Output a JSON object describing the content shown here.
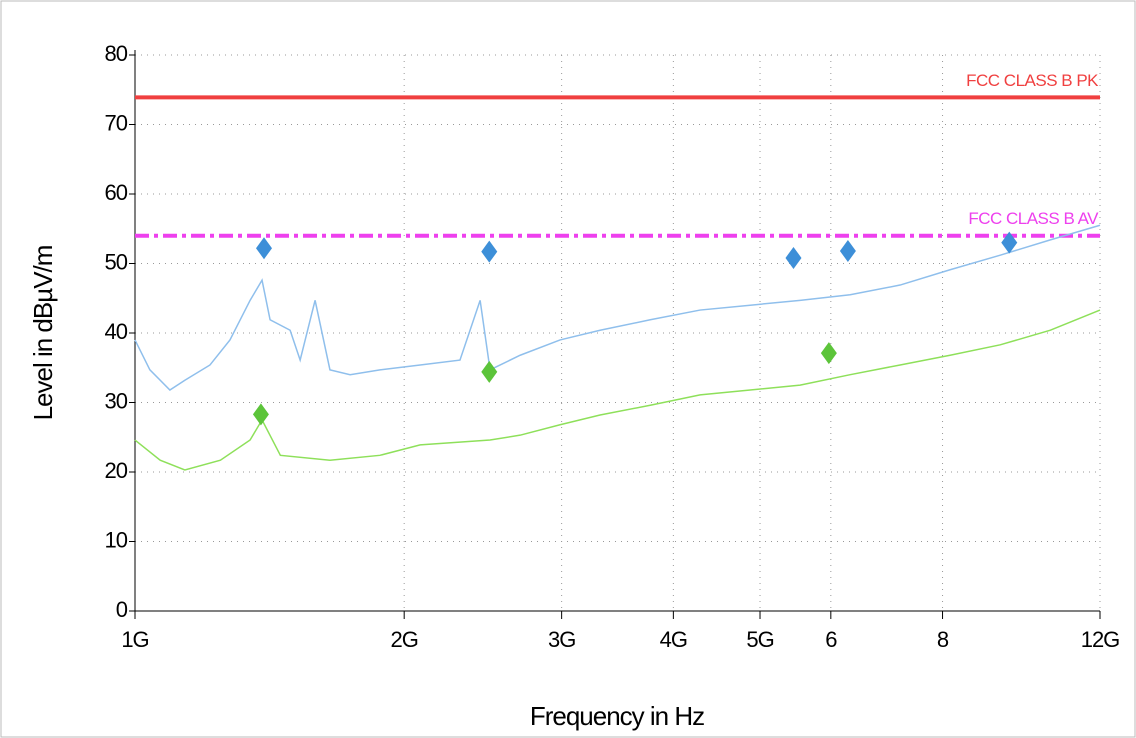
{
  "chart_data": {
    "type": "line",
    "xlabel": "Frequency in Hz",
    "ylabel": "Level in dBµV/m",
    "xscale": "log",
    "xlim": [
      1,
      12
    ],
    "ylim": [
      0,
      80
    ],
    "xticks": [
      {
        "value": 1,
        "label": "1G"
      },
      {
        "value": 2,
        "label": "2G"
      },
      {
        "value": 3,
        "label": "3G"
      },
      {
        "value": 4,
        "label": "4G"
      },
      {
        "value": 5,
        "label": "5G"
      },
      6,
      8,
      {
        "value": 12,
        "label": "12G"
      }
    ],
    "yticks": [
      0,
      10,
      20,
      30,
      40,
      50,
      60,
      70,
      80
    ],
    "grid": true,
    "series": [
      {
        "color": "#8fbfec",
        "x": [
          1.0,
          1.039,
          1.094,
          1.137,
          1.213,
          1.277,
          1.345,
          1.387,
          1.416,
          1.491,
          1.53,
          1.59,
          1.652,
          1.74,
          1.879,
          2.084,
          2.309,
          2.432,
          2.495,
          2.696,
          2.988,
          3.312,
          3.769,
          4.285,
          4.875,
          5.544,
          6.306,
          7.172,
          8.157,
          9.281,
          10.56,
          12.0
        ],
        "values": [
          39,
          34.7,
          31.8,
          33.2,
          35.4,
          39,
          44.7,
          47.6,
          41.9,
          40.4,
          36.1,
          44.7,
          34.7,
          34,
          34.7,
          35.4,
          36.1,
          44.7,
          34.7,
          36.8,
          39,
          40.4,
          41.9,
          43.3,
          44,
          44.7,
          45.5,
          46.9,
          49.1,
          51.2,
          53.4,
          55.5
        ]
      },
      {
        "color": "#8ee05a",
        "x": [
          1.0,
          1.067,
          1.137,
          1.246,
          1.345,
          1.387,
          1.454,
          1.652,
          1.879,
          2.084,
          2.495,
          2.696,
          2.988,
          3.312,
          3.769,
          4.285,
          4.875,
          5.544,
          6.306,
          7.172,
          8.157,
          9.281,
          10.56,
          12.0
        ],
        "values": [
          24.6,
          21.7,
          20.3,
          21.7,
          24.6,
          27.5,
          22.4,
          21.7,
          22.4,
          23.9,
          24.6,
          25.3,
          26.8,
          28.2,
          29.6,
          31.1,
          31.8,
          32.5,
          34.0,
          35.4,
          36.8,
          38.3,
          40.4,
          43.3
        ]
      }
    ],
    "markers": [
      {
        "color": "#3d8fd8",
        "x": [
          1.394,
          2.49,
          5.45,
          6.27,
          9.5
        ],
        "values": [
          52.2,
          51.7,
          50.8,
          51.8,
          53.0
        ]
      },
      {
        "color": "#5cc43a",
        "x": [
          1.383,
          2.49,
          5.97
        ],
        "values": [
          28.3,
          34.4,
          37.1
        ]
      }
    ],
    "limits": [
      {
        "name": "FCC CLASS B PK",
        "value": 73.9,
        "color": "#f04040",
        "style": "solid"
      },
      {
        "name": "FCC CLASS B AV",
        "value": 54,
        "color": "#ee40ee",
        "style": "dashdot"
      }
    ]
  }
}
